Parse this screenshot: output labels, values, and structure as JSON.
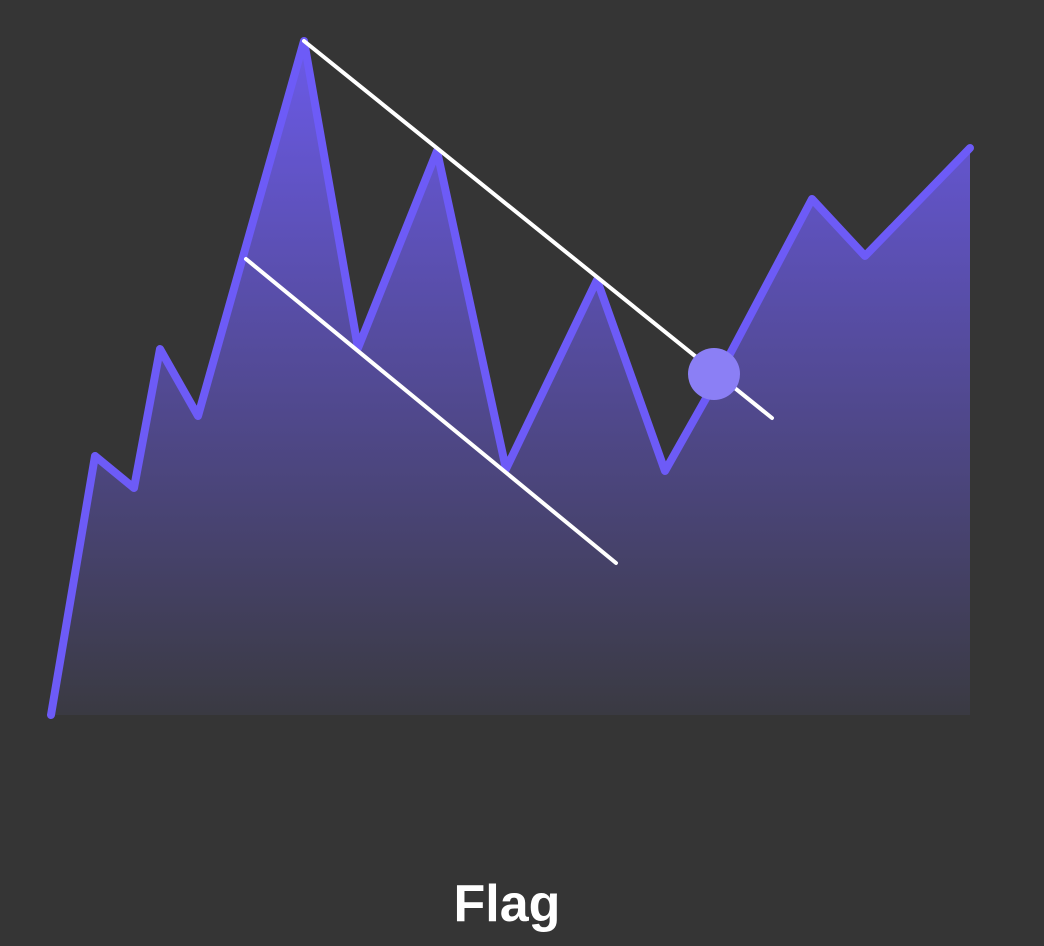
{
  "caption": "Flag",
  "colors": {
    "background": "#353535",
    "price_line": "#6d5bf7",
    "area_fill_top": "#6b5ae8",
    "area_fill_bottom": "#3a3a42",
    "channel_lines": "#ffffff",
    "breakout_point": "#8b7ff5",
    "caption": "#ffffff"
  }
}
